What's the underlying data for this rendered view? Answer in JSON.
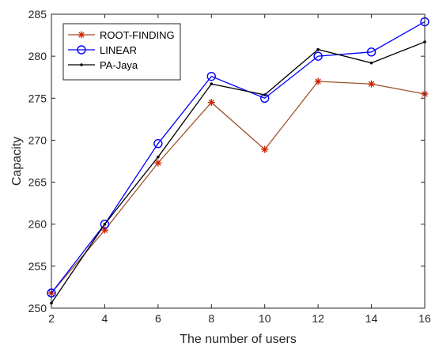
{
  "chart_data": {
    "type": "line",
    "x": [
      2,
      4,
      6,
      8,
      10,
      12,
      14,
      16
    ],
    "xlabel": "The number of users",
    "ylabel": "Capacity",
    "xlim": [
      2,
      16
    ],
    "ylim": [
      250,
      285
    ],
    "xticks": [
      "2",
      "4",
      "6",
      "8",
      "10",
      "12",
      "14",
      "16"
    ],
    "yticks": [
      "250",
      "255",
      "260",
      "265",
      "270",
      "275",
      "280",
      "285"
    ],
    "grid": false,
    "legend_position": "top-left",
    "series": [
      {
        "name": "ROOT-FINDING",
        "values": [
          251.8,
          259.3,
          267.3,
          274.5,
          268.9,
          277.0,
          276.7,
          275.5
        ],
        "color": "#a0522d",
        "marker_color": "#cc2200",
        "marker": "asterisk"
      },
      {
        "name": "LINEAR",
        "values": [
          251.8,
          260.0,
          269.6,
          277.6,
          275.0,
          280.0,
          280.5,
          284.1
        ],
        "color": "#0000ff",
        "marker_color": "#0000ff",
        "marker": "circle"
      },
      {
        "name": "PA-Jaya",
        "values": [
          250.6,
          260.0,
          268.0,
          276.7,
          275.4,
          280.8,
          279.2,
          281.7
        ],
        "color": "#000000",
        "marker_color": "#000000",
        "marker": "dot"
      }
    ]
  }
}
